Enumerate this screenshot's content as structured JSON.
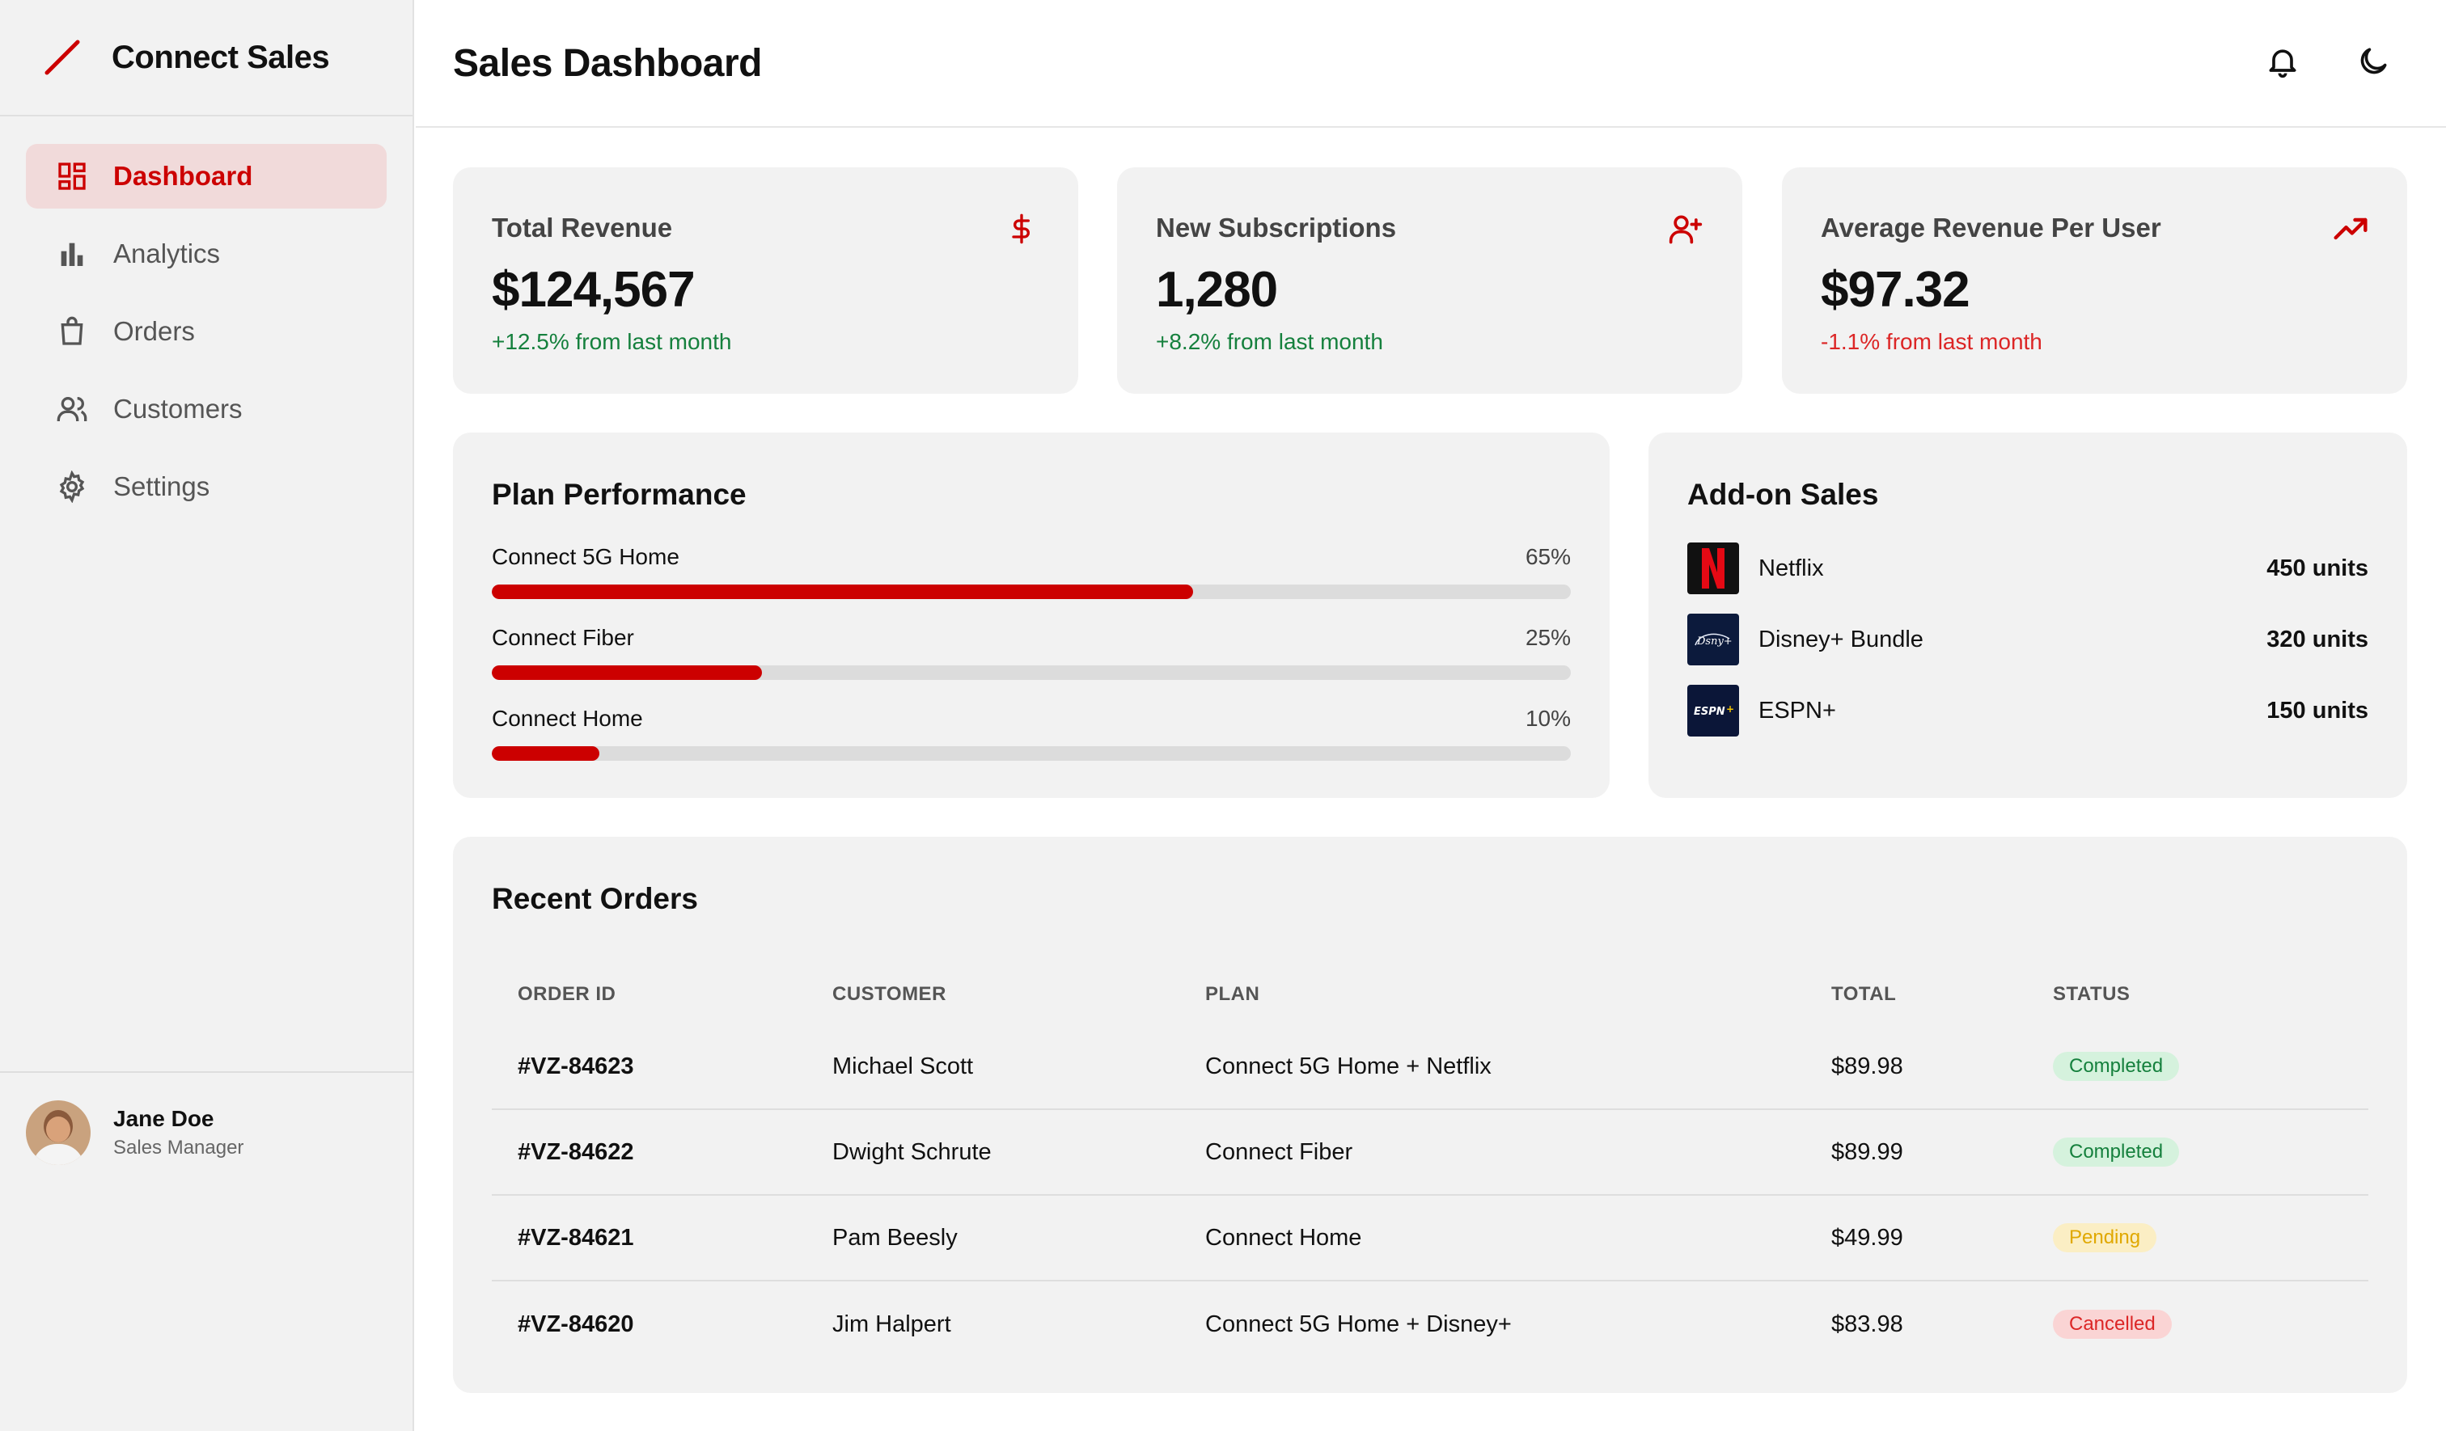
{
  "app": {
    "name": "Connect Sales"
  },
  "sidebar": {
    "items": [
      {
        "label": "Dashboard",
        "icon": "dashboard-icon",
        "active": true
      },
      {
        "label": "Analytics",
        "icon": "bar-chart-icon"
      },
      {
        "label": "Orders",
        "icon": "shopping-bag-icon"
      },
      {
        "label": "Customers",
        "icon": "users-icon"
      },
      {
        "label": "Settings",
        "icon": "gear-icon"
      }
    ],
    "user": {
      "name": "Jane Doe",
      "role": "Sales Manager"
    }
  },
  "header": {
    "title": "Sales Dashboard",
    "icons": [
      "bell-icon",
      "moon-icon"
    ]
  },
  "stats": [
    {
      "label": "Total Revenue",
      "value": "$124,567",
      "change": "+12.5% from last month",
      "trend": "positive",
      "icon": "dollar-icon"
    },
    {
      "label": "New Subscriptions",
      "value": "1,280",
      "change": "+8.2% from last month",
      "trend": "positive",
      "icon": "user-plus-icon"
    },
    {
      "label": "Average Revenue Per User",
      "value": "$97.32",
      "change": "-1.1% from last month",
      "trend": "negative",
      "icon": "trending-up-icon"
    }
  ],
  "plan_performance": {
    "title": "Plan Performance",
    "plans": [
      {
        "name": "Connect 5G Home",
        "percent_label": "65%",
        "value": 65
      },
      {
        "name": "Connect Fiber",
        "percent_label": "25%",
        "value": 25
      },
      {
        "name": "Connect Home",
        "percent_label": "10%",
        "value": 10
      }
    ]
  },
  "addon_sales": {
    "title": "Add-on Sales",
    "items": [
      {
        "name": "Netflix",
        "units": "450 units",
        "logo": "netflix-logo"
      },
      {
        "name": "Disney+ Bundle",
        "units": "320 units",
        "logo": "disney-plus-logo"
      },
      {
        "name": "ESPN+",
        "units": "150 units",
        "logo": "espn-plus-logo"
      }
    ]
  },
  "recent_orders": {
    "title": "Recent Orders",
    "columns": [
      "ORDER ID",
      "CUSTOMER",
      "PLAN",
      "TOTAL",
      "STATUS"
    ],
    "rows": [
      {
        "id": "#VZ-84623",
        "customer": "Michael Scott",
        "plan": "Connect 5G Home + Netflix",
        "total": "$89.98",
        "status": "Completed"
      },
      {
        "id": "#VZ-84622",
        "customer": "Dwight Schrute",
        "plan": "Connect Fiber",
        "total": "$89.99",
        "status": "Completed"
      },
      {
        "id": "#VZ-84621",
        "customer": "Pam Beesly",
        "plan": "Connect Home",
        "total": "$49.99",
        "status": "Pending"
      },
      {
        "id": "#VZ-84620",
        "customer": "Jim Halpert",
        "plan": "Connect 5G Home + Disney+",
        "total": "$83.98",
        "status": "Cancelled"
      }
    ]
  },
  "colors": {
    "accent": "#cc0000",
    "positive": "#15803d",
    "negative": "#dc2626",
    "pending": "#e0a800",
    "card_bg": "#f2f2f2"
  }
}
